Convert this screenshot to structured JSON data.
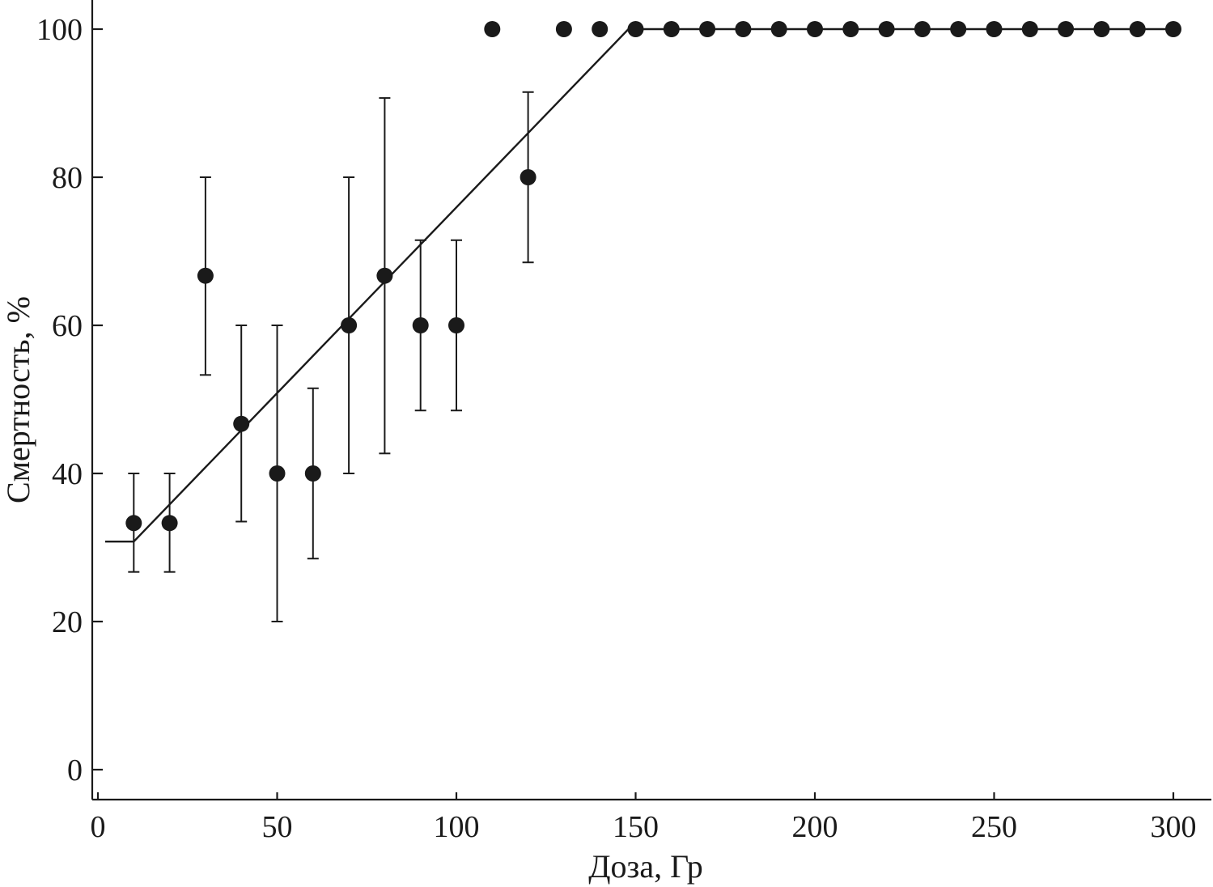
{
  "chart_data": {
    "type": "scatter",
    "title": "",
    "xlabel": "Доза, Гр",
    "ylabel": "Смертность, %",
    "xlim": [
      0,
      310
    ],
    "ylim": [
      -4,
      105
    ],
    "x_ticks": [
      0,
      50,
      100,
      150,
      200,
      250,
      300
    ],
    "y_ticks": [
      0,
      20,
      40,
      60,
      80,
      100
    ],
    "x_tick_labels": [
      "0",
      "50",
      "100",
      "150",
      "200",
      "250",
      "300"
    ],
    "y_tick_labels": [
      "0",
      "20",
      "40",
      "60",
      "80",
      "100"
    ],
    "grid": false,
    "legend": "none",
    "points": [
      {
        "x": 10,
        "y": 33.3,
        "err_low": 26.7,
        "err_high": 40
      },
      {
        "x": 20,
        "y": 33.3,
        "err_low": 26.7,
        "err_high": 40
      },
      {
        "x": 30,
        "y": 66.7,
        "err_low": 53.3,
        "err_high": 80
      },
      {
        "x": 40,
        "y": 46.7,
        "err_low": 33.5,
        "err_high": 60
      },
      {
        "x": 50,
        "y": 40,
        "err_low": 20,
        "err_high": 60
      },
      {
        "x": 60,
        "y": 40,
        "err_low": 28.5,
        "err_high": 51.5
      },
      {
        "x": 70,
        "y": 60,
        "err_low": 40,
        "err_high": 80
      },
      {
        "x": 80,
        "y": 66.7,
        "err_low": 42.7,
        "err_high": 90.7
      },
      {
        "x": 90,
        "y": 60,
        "err_low": 48.5,
        "err_high": 71.5
      },
      {
        "x": 100,
        "y": 60,
        "err_low": 48.5,
        "err_high": 71.5
      },
      {
        "x": 110,
        "y": 100
      },
      {
        "x": 120,
        "y": 80,
        "err_low": 68.5,
        "err_high": 91.5
      },
      {
        "x": 130,
        "y": 100
      },
      {
        "x": 140,
        "y": 100
      },
      {
        "x": 150,
        "y": 100
      },
      {
        "x": 160,
        "y": 100
      },
      {
        "x": 170,
        "y": 100
      },
      {
        "x": 180,
        "y": 100
      },
      {
        "x": 190,
        "y": 100
      },
      {
        "x": 200,
        "y": 100
      },
      {
        "x": 210,
        "y": 100
      },
      {
        "x": 220,
        "y": 100
      },
      {
        "x": 230,
        "y": 100
      },
      {
        "x": 240,
        "y": 100
      },
      {
        "x": 250,
        "y": 100
      },
      {
        "x": 260,
        "y": 100
      },
      {
        "x": 270,
        "y": 100
      },
      {
        "x": 280,
        "y": 100
      },
      {
        "x": 290,
        "y": 100
      },
      {
        "x": 300,
        "y": 100
      }
    ],
    "fit_line": [
      {
        "x": 2,
        "y": 30.8
      },
      {
        "x": 10,
        "y": 30.8
      },
      {
        "x": 148,
        "y": 100
      },
      {
        "x": 300,
        "y": 100
      }
    ],
    "colors": {
      "ink": "#1a1a1a",
      "background": "#ffffff"
    }
  }
}
